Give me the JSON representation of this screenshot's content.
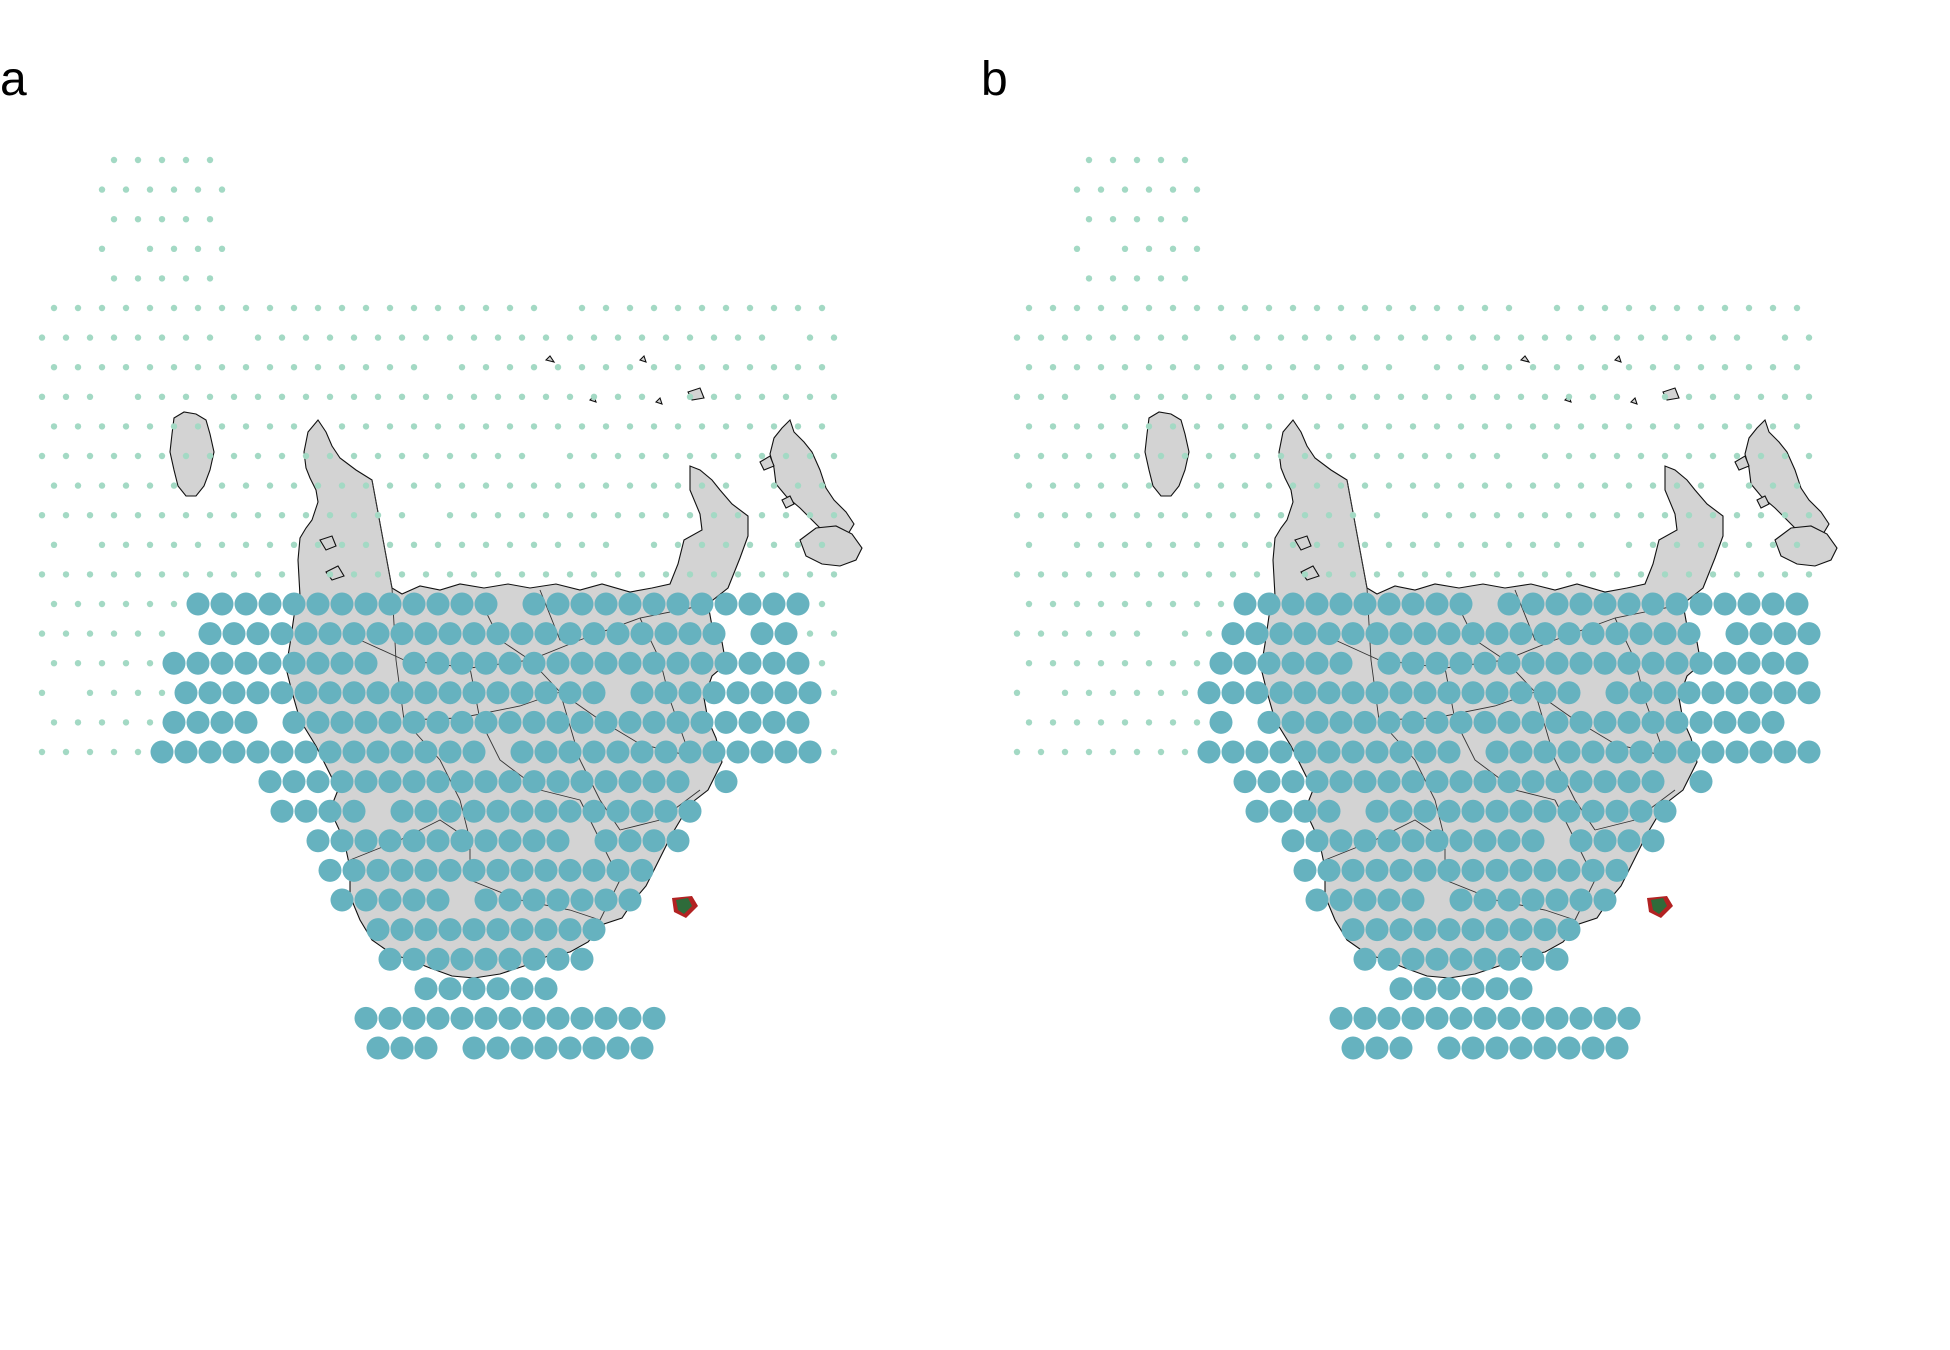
{
  "panels": [
    {
      "id": "a",
      "label": "a"
    },
    {
      "id": "b",
      "label": "b"
    }
  ],
  "colors": {
    "land": "#d3d3d3",
    "outline": "#111111",
    "small_point": "#a3d9c4",
    "large_point": "#66b2bf",
    "marker_red": "#b22222",
    "marker_green": "#2e6b3a",
    "background": "#ffffff"
  },
  "legend": "none",
  "grid": false
}
